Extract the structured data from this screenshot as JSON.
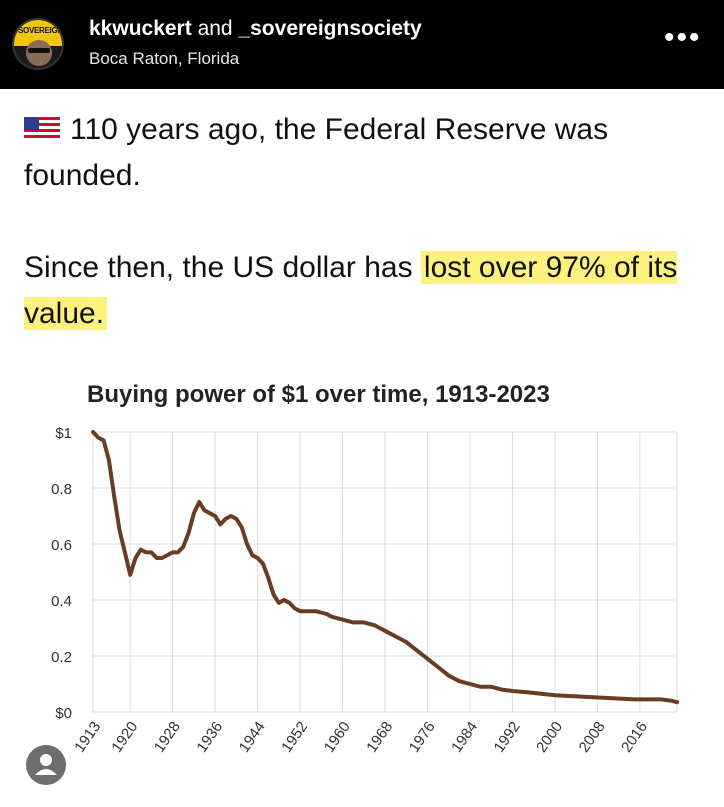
{
  "header": {
    "author_primary": "kkwuckert",
    "author_joiner": " and ",
    "author_secondary": "_sovereignsociety",
    "location": "Boca Raton, Florida",
    "more_label": "•••",
    "avatar_text": "SOVEREIGN"
  },
  "post": {
    "line1": "110 years ago, the Federal Reserve was founded.",
    "line2_plain": "Since then, the US dollar has ",
    "line2_highlight": "lost over 97% of its value."
  },
  "colors": {
    "line": "#6b3b22",
    "grid": "#dcdcdc",
    "highlight": "#fbf27d"
  },
  "chart_data": {
    "type": "line",
    "title": "Buying power of $1 over time, 1913-2023",
    "xlabel": "",
    "ylabel": "",
    "xlim": [
      1913,
      2023
    ],
    "ylim": [
      0,
      1
    ],
    "y_ticks": [
      {
        "value": 1,
        "label": "$1"
      },
      {
        "value": 0.8,
        "label": "0.8"
      },
      {
        "value": 0.6,
        "label": "0.6"
      },
      {
        "value": 0.4,
        "label": "0.4"
      },
      {
        "value": 0.2,
        "label": "0.2"
      },
      {
        "value": 0,
        "label": "$0"
      }
    ],
    "x_ticks": [
      "1913",
      "1920",
      "1928",
      "1936",
      "1944",
      "1952",
      "1960",
      "1968",
      "1976",
      "1984",
      "1992",
      "2000",
      "2008",
      "2016"
    ],
    "grid": true,
    "series": [
      {
        "x": [
          1913,
          1914,
          1915,
          1916,
          1917,
          1918,
          1919,
          1920,
          1921,
          1922,
          1923,
          1924,
          1925,
          1926,
          1927,
          1928,
          1929,
          1930,
          1931,
          1932,
          1933,
          1934,
          1935,
          1936,
          1937,
          1938,
          1939,
          1940,
          1941,
          1942,
          1943,
          1944,
          1945,
          1946,
          1947,
          1948,
          1949,
          1950,
          1951,
          1952,
          1953,
          1955,
          1957,
          1958,
          1960,
          1962,
          1964,
          1966,
          1968,
          1970,
          1972,
          1974,
          1976,
          1978,
          1980,
          1982,
          1984,
          1986,
          1988,
          1990,
          1992,
          1995,
          2000,
          2005,
          2010,
          2015,
          2020,
          2022,
          2023
        ],
        "values": [
          1.0,
          0.98,
          0.97,
          0.9,
          0.77,
          0.65,
          0.57,
          0.49,
          0.55,
          0.58,
          0.57,
          0.57,
          0.55,
          0.55,
          0.56,
          0.57,
          0.57,
          0.59,
          0.64,
          0.71,
          0.75,
          0.72,
          0.71,
          0.7,
          0.67,
          0.69,
          0.7,
          0.69,
          0.66,
          0.6,
          0.56,
          0.55,
          0.53,
          0.48,
          0.42,
          0.39,
          0.4,
          0.39,
          0.37,
          0.36,
          0.36,
          0.36,
          0.35,
          0.34,
          0.33,
          0.32,
          0.32,
          0.31,
          0.29,
          0.27,
          0.25,
          0.22,
          0.19,
          0.16,
          0.13,
          0.11,
          0.1,
          0.09,
          0.09,
          0.08,
          0.075,
          0.07,
          0.06,
          0.055,
          0.05,
          0.045,
          0.045,
          0.04,
          0.035
        ]
      }
    ]
  }
}
